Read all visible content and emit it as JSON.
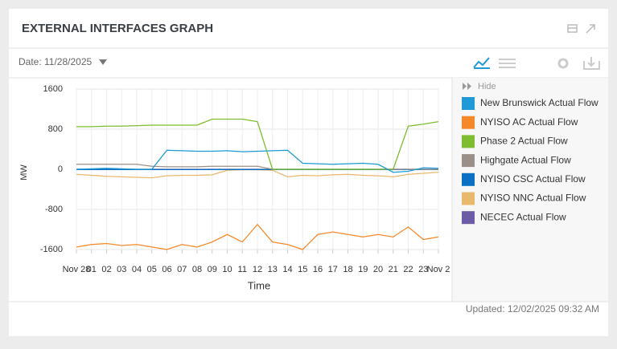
{
  "header": {
    "title": "EXTERNAL INTERFACES GRAPH"
  },
  "toolbar": {
    "date": "Date: 11/28/2025"
  },
  "legend": {
    "hide": "Hide"
  },
  "footer": {
    "updated": "Updated: 12/02/2025 09:32 AM"
  },
  "chart_data": {
    "type": "line",
    "xlabel": "Time",
    "ylabel": "MW",
    "x": [
      0,
      1,
      2,
      3,
      4,
      5,
      6,
      7,
      8,
      9,
      10,
      11,
      12,
      13,
      14,
      15,
      16,
      17,
      18,
      19,
      20,
      21,
      22,
      23,
      24
    ],
    "xlim": [
      0,
      24
    ],
    "xticks": [
      {
        "value": 0,
        "label": "Nov 28"
      },
      {
        "value": 1,
        "label": "01"
      },
      {
        "value": 2,
        "label": "02"
      },
      {
        "value": 3,
        "label": "03"
      },
      {
        "value": 4,
        "label": "04"
      },
      {
        "value": 5,
        "label": "05"
      },
      {
        "value": 6,
        "label": "06"
      },
      {
        "value": 7,
        "label": "07"
      },
      {
        "value": 8,
        "label": "08"
      },
      {
        "value": 9,
        "label": "09"
      },
      10,
      11,
      12,
      13,
      14,
      15,
      16,
      17,
      18,
      19,
      20,
      21,
      22,
      23,
      {
        "value": 24,
        "label": "Nov 2"
      }
    ],
    "ylim": [
      -1600,
      1600
    ],
    "yticks": [
      -1600,
      -800,
      0,
      800,
      1600
    ],
    "grid": true,
    "series": [
      {
        "name": "New Brunswick Actual Flow",
        "color": "#1e9ad6",
        "values": [
          0,
          10,
          20,
          10,
          0,
          0,
          380,
          370,
          360,
          360,
          370,
          350,
          360,
          370,
          380,
          120,
          110,
          100,
          110,
          120,
          100,
          -60,
          -40,
          30,
          20
        ]
      },
      {
        "name": "NYISO AC Actual Flow",
        "color": "#f5892a",
        "values": [
          -1550,
          -1500,
          -1480,
          -1520,
          -1500,
          -1550,
          -1600,
          -1500,
          -1550,
          -1450,
          -1300,
          -1450,
          -1100,
          -1450,
          -1500,
          -1600,
          -1300,
          -1250,
          -1300,
          -1350,
          -1300,
          -1350,
          -1150,
          -1400,
          -1350
        ]
      },
      {
        "name": "Phase 2 Actual Flow",
        "color": "#7dbe31",
        "values": [
          850,
          850,
          860,
          860,
          870,
          880,
          880,
          880,
          880,
          1000,
          1000,
          1000,
          950,
          0,
          0,
          0,
          0,
          0,
          0,
          0,
          0,
          0,
          860,
          900,
          950
        ]
      },
      {
        "name": "Highgate Actual Flow",
        "color": "#9b9089",
        "values": [
          100,
          100,
          100,
          100,
          100,
          60,
          50,
          50,
          50,
          60,
          60,
          60,
          60,
          0,
          0,
          0,
          0,
          0,
          0,
          0,
          0,
          0,
          0,
          0,
          0
        ]
      },
      {
        "name": "NYISO CSC Actual Flow",
        "color": "#0b6fc4",
        "values": [
          -5,
          -5,
          -5,
          -5,
          -5,
          -5,
          -5,
          -5,
          -5,
          -5,
          -5,
          -5,
          -5,
          -5,
          -5,
          -5,
          -5,
          -5,
          -5,
          -5,
          -5,
          -5,
          -5,
          -5,
          -5
        ]
      },
      {
        "name": "NYISO NNC Actual Flow",
        "color": "#e8b86d",
        "values": [
          -100,
          -120,
          -140,
          -150,
          -160,
          -170,
          -130,
          -120,
          -120,
          -110,
          -20,
          -10,
          -10,
          -20,
          -150,
          -120,
          -130,
          -110,
          -100,
          -120,
          -130,
          -150,
          -100,
          -80,
          -60
        ]
      },
      {
        "name": "NECEC Actual Flow",
        "color": "#6b5ca5",
        "values": [
          0,
          0,
          0,
          0,
          0,
          0,
          0,
          0,
          0,
          0,
          0,
          0,
          0,
          0,
          0,
          0,
          0,
          0,
          0,
          0,
          0,
          0,
          0,
          0,
          0
        ]
      }
    ]
  }
}
